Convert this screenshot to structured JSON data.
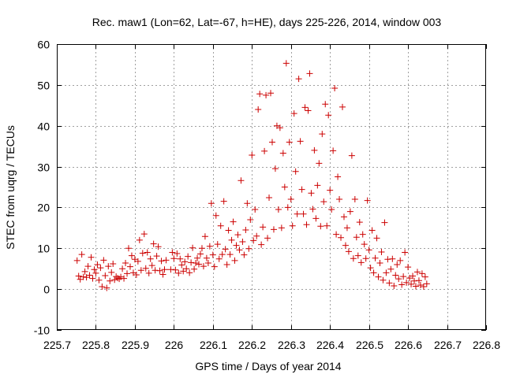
{
  "chart_data": {
    "type": "scatter",
    "title": "Rec. maw1 (Lon=62, Lat=-67, h=HE), days 225-226, 2014, window 003",
    "xlabel": "GPS time / Days of year 2014",
    "ylabel": "STEC from uqrg / TECUs",
    "xlim": [
      225.7,
      226.8
    ],
    "ylim": [
      -10,
      60
    ],
    "xticks": [
      "225.7",
      "225.8",
      "225.9",
      "226",
      "226.1",
      "226.2",
      "226.3",
      "226.4",
      "226.5",
      "226.6",
      "226.7",
      "226.8"
    ],
    "yticks": [
      "-10",
      "0",
      "10",
      "20",
      "30",
      "40",
      "50",
      "60"
    ],
    "grid": true,
    "marker": "plus",
    "color": "#cc0000",
    "series": [
      {
        "name": "",
        "points": [
          [
            225.752,
            7.0
          ],
          [
            225.756,
            3.2
          ],
          [
            225.76,
            2.4
          ],
          [
            225.764,
            8.5
          ],
          [
            225.768,
            3.0
          ],
          [
            225.772,
            4.3
          ],
          [
            225.776,
            2.9
          ],
          [
            225.78,
            5.6
          ],
          [
            225.784,
            3.4
          ],
          [
            225.788,
            7.8
          ],
          [
            225.792,
            2.6
          ],
          [
            225.796,
            4.8
          ],
          [
            225.8,
            3.9
          ],
          [
            225.804,
            6.0
          ],
          [
            225.808,
            2.2
          ],
          [
            225.812,
            5.2
          ],
          [
            225.816,
            0.6
          ],
          [
            225.82,
            7.1
          ],
          [
            225.824,
            3.3
          ],
          [
            225.828,
            0.3
          ],
          [
            225.832,
            5.6
          ],
          [
            225.836,
            2.0
          ],
          [
            225.84,
            4.1
          ],
          [
            225.844,
            6.2
          ],
          [
            225.848,
            2.3
          ],
          [
            225.852,
            3.1
          ],
          [
            225.856,
            2.7
          ],
          [
            225.86,
            2.5
          ],
          [
            225.864,
            3.0
          ],
          [
            225.868,
            5.0
          ],
          [
            225.872,
            2.6
          ],
          [
            225.876,
            6.4
          ],
          [
            225.88,
            3.8
          ],
          [
            225.884,
            10.0
          ],
          [
            225.888,
            5.5
          ],
          [
            225.892,
            8.2
          ],
          [
            225.896,
            4.0
          ],
          [
            225.9,
            7.3
          ],
          [
            225.904,
            3.5
          ],
          [
            225.908,
            6.8
          ],
          [
            225.912,
            12.0
          ],
          [
            225.916,
            4.6
          ],
          [
            225.92,
            8.8
          ],
          [
            225.924,
            13.5
          ],
          [
            225.928,
            5.1
          ],
          [
            225.932,
            9.0
          ],
          [
            225.936,
            3.9
          ],
          [
            225.94,
            7.4
          ],
          [
            225.944,
            5.8
          ],
          [
            225.948,
            11.1
          ],
          [
            225.952,
            4.6
          ],
          [
            225.956,
            8.1
          ],
          [
            225.96,
            10.4
          ],
          [
            225.964,
            4.5
          ],
          [
            225.968,
            6.9
          ],
          [
            225.972,
            3.6
          ],
          [
            225.976,
            4.8
          ],
          [
            225.98,
            7.1
          ],
          [
            225.992,
            4.8
          ],
          [
            225.996,
            9.0
          ],
          [
            226.0,
            7.5
          ],
          [
            226.004,
            4.7
          ],
          [
            226.008,
            8.7
          ],
          [
            226.012,
            3.9
          ],
          [
            226.016,
            7.4
          ],
          [
            226.02,
            5.9
          ],
          [
            226.024,
            4.4
          ],
          [
            226.028,
            6.7
          ],
          [
            226.032,
            5.0
          ],
          [
            226.036,
            8.0
          ],
          [
            226.04,
            4.0
          ],
          [
            226.044,
            6.5
          ],
          [
            226.048,
            10.1
          ],
          [
            226.052,
            4.9
          ],
          [
            226.056,
            6.4
          ],
          [
            226.06,
            7.6
          ],
          [
            226.064,
            6.1
          ],
          [
            226.068,
            8.6
          ],
          [
            226.072,
            10.0
          ],
          [
            226.076,
            5.6
          ],
          [
            226.08,
            12.9
          ],
          [
            226.084,
            7.6
          ],
          [
            226.088,
            6.4
          ],
          [
            226.092,
            10.5
          ],
          [
            226.096,
            21.0
          ],
          [
            226.1,
            8.4
          ],
          [
            226.104,
            5.5
          ],
          [
            226.108,
            18.0
          ],
          [
            226.112,
            11.0
          ],
          [
            226.116,
            7.4
          ],
          [
            226.12,
            15.5
          ],
          [
            226.124,
            8.5
          ],
          [
            226.128,
            21.5
          ],
          [
            226.132,
            9.8
          ],
          [
            226.136,
            6.0
          ],
          [
            226.14,
            14.4
          ],
          [
            226.144,
            8.5
          ],
          [
            226.148,
            12.0
          ],
          [
            226.152,
            16.5
          ],
          [
            226.156,
            7.0
          ],
          [
            226.16,
            10.7
          ],
          [
            226.164,
            13.3
          ],
          [
            226.168,
            9.6
          ],
          [
            226.172,
            26.6
          ],
          [
            226.176,
            11.6
          ],
          [
            226.18,
            8.4
          ],
          [
            226.184,
            14.5
          ],
          [
            226.188,
            21.0
          ],
          [
            226.192,
            9.9
          ],
          [
            226.196,
            17.0
          ],
          [
            226.2,
            32.8
          ],
          [
            226.204,
            11.9
          ],
          [
            226.208,
            19.5
          ],
          [
            226.212,
            13.0
          ],
          [
            226.216,
            44.0
          ],
          [
            226.22,
            47.8
          ],
          [
            226.224,
            10.9
          ],
          [
            226.228,
            15.2
          ],
          [
            226.232,
            33.8
          ],
          [
            226.236,
            47.5
          ],
          [
            226.24,
            12.5
          ],
          [
            226.244,
            22.4
          ],
          [
            226.248,
            48.0
          ],
          [
            226.252,
            36.0
          ],
          [
            226.256,
            14.6
          ],
          [
            226.26,
            29.5
          ],
          [
            226.264,
            40.0
          ],
          [
            226.268,
            19.5
          ],
          [
            226.272,
            39.5
          ],
          [
            226.276,
            15.0
          ],
          [
            226.28,
            33.3
          ],
          [
            226.284,
            25.0
          ],
          [
            226.288,
            55.3
          ],
          [
            226.292,
            20.0
          ],
          [
            226.296,
            36.0
          ],
          [
            226.3,
            22.0
          ],
          [
            226.304,
            15.5
          ],
          [
            226.308,
            43.0
          ],
          [
            226.312,
            28.8
          ],
          [
            226.316,
            18.4
          ],
          [
            226.32,
            51.5
          ],
          [
            226.324,
            36.2
          ],
          [
            226.328,
            24.4
          ],
          [
            226.332,
            18.4
          ],
          [
            226.336,
            44.5
          ],
          [
            226.34,
            15.8
          ],
          [
            226.344,
            43.7
          ],
          [
            226.348,
            52.8
          ],
          [
            226.352,
            23.5
          ],
          [
            226.356,
            19.6
          ],
          [
            226.36,
            34.0
          ],
          [
            226.364,
            17.3
          ],
          [
            226.368,
            25.4
          ],
          [
            226.372,
            30.8
          ],
          [
            226.376,
            15.4
          ],
          [
            226.38,
            38.0
          ],
          [
            226.384,
            21.4
          ],
          [
            226.388,
            45.3
          ],
          [
            226.392,
            15.5
          ],
          [
            226.396,
            42.6
          ],
          [
            226.4,
            24.2
          ],
          [
            226.404,
            19.5
          ],
          [
            226.408,
            33.9
          ],
          [
            226.412,
            49.2
          ],
          [
            226.416,
            13.4
          ],
          [
            226.42,
            27.5
          ],
          [
            226.424,
            22.0
          ],
          [
            226.428,
            12.6
          ],
          [
            226.432,
            44.6
          ],
          [
            226.436,
            17.7
          ],
          [
            226.44,
            10.7
          ],
          [
            226.444,
            15.0
          ],
          [
            226.448,
            9.2
          ],
          [
            226.452,
            19.0
          ],
          [
            226.456,
            32.7
          ],
          [
            226.46,
            7.5
          ],
          [
            226.464,
            22.0
          ],
          [
            226.468,
            12.7
          ],
          [
            226.472,
            8.2
          ],
          [
            226.476,
            16.4
          ],
          [
            226.48,
            6.5
          ],
          [
            226.484,
            13.4
          ],
          [
            226.488,
            11.0
          ],
          [
            226.492,
            7.5
          ],
          [
            226.496,
            21.7
          ],
          [
            226.5,
            9.6
          ],
          [
            226.504,
            5.2
          ],
          [
            226.508,
            14.4
          ],
          [
            226.512,
            4.0
          ],
          [
            226.516,
            7.6
          ],
          [
            226.52,
            12.5
          ],
          [
            226.524,
            3.0
          ],
          [
            226.528,
            6.4
          ],
          [
            226.532,
            9.1
          ],
          [
            226.536,
            2.2
          ],
          [
            226.54,
            16.3
          ],
          [
            226.544,
            4.0
          ],
          [
            226.548,
            7.3
          ],
          [
            226.552,
            1.5
          ],
          [
            226.556,
            4.9
          ],
          [
            226.56,
            7.4
          ],
          [
            226.564,
            0.8
          ],
          [
            226.568,
            3.4
          ],
          [
            226.572,
            6.0
          ],
          [
            226.576,
            2.5
          ],
          [
            226.58,
            7.0
          ],
          [
            226.584,
            1.1
          ],
          [
            226.588,
            3.1
          ],
          [
            226.592,
            9.0
          ],
          [
            226.596,
            1.6
          ],
          [
            226.6,
            5.4
          ],
          [
            226.604,
            2.7
          ],
          [
            226.608,
            1.2
          ],
          [
            226.612,
            3.2
          ],
          [
            226.616,
            2.0
          ],
          [
            226.62,
            0.7
          ],
          [
            226.624,
            4.2
          ],
          [
            226.628,
            2.1
          ],
          [
            226.632,
            1.0
          ],
          [
            226.636,
            3.8
          ],
          [
            226.64,
            0.6
          ],
          [
            226.644,
            3.0
          ],
          [
            226.648,
            1.3
          ]
        ]
      }
    ]
  }
}
